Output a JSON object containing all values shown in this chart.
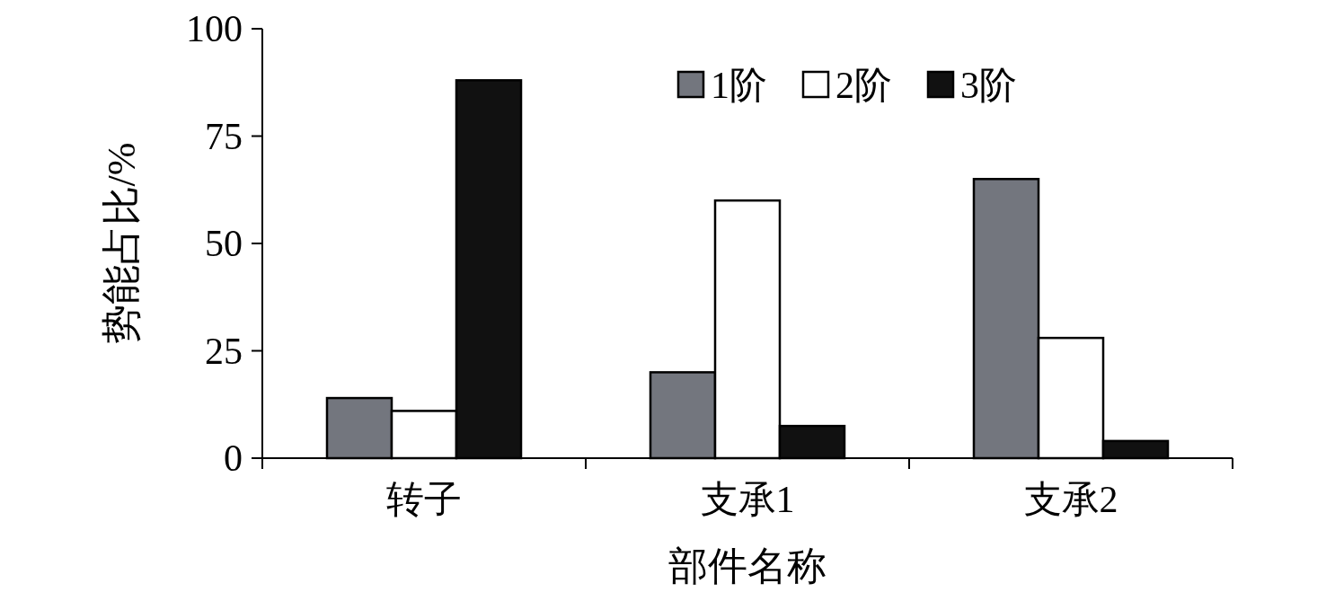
{
  "chart_data": {
    "type": "bar",
    "xlabel": "部件名称",
    "ylabel": "势能占比/%",
    "categories": [
      "转子",
      "支承1",
      "支承2"
    ],
    "series": [
      {
        "name": "1阶",
        "color": "#73767e",
        "values": [
          14,
          20,
          65
        ]
      },
      {
        "name": "2阶",
        "color": "#ffffff",
        "values": [
          11,
          60,
          28
        ]
      },
      {
        "name": "3阶",
        "color": "#111111",
        "values": [
          88,
          7.5,
          4
        ]
      }
    ],
    "ylim": [
      0,
      100
    ],
    "yticks": [
      0,
      25,
      50,
      75,
      100
    ],
    "grid": false,
    "legend": "top right"
  }
}
